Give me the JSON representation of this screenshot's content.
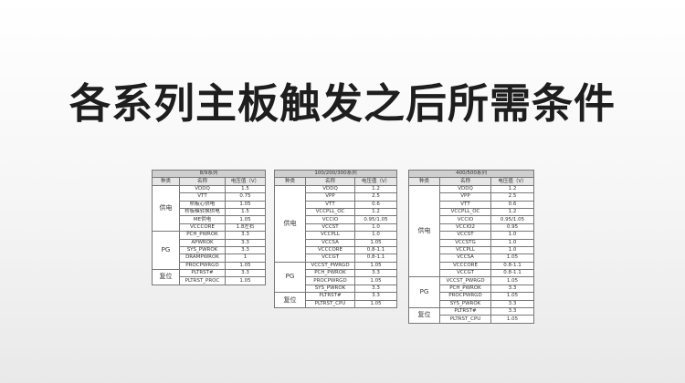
{
  "header": {
    "title": "各系列主板触发之后所需条件"
  },
  "tables": [
    {
      "title": "8/9系列",
      "headers": [
        "种类",
        "名称",
        "电压值（V）"
      ],
      "groups": [
        {
          "kind": "供电",
          "rows": [
            [
              "VDDQ",
              "1.5"
            ],
            [
              "VTT",
              "0.75"
            ],
            [
              "桥板心供电",
              "1.05"
            ],
            [
              "桥板模转换供电",
              "1.5"
            ],
            [
              "ME供电",
              "1.05"
            ],
            [
              "VCCCORE",
              "1.8左右"
            ]
          ]
        },
        {
          "kind": "PG",
          "rows": [
            [
              "PCH_PWROK",
              "3.3"
            ],
            [
              "APWROK",
              "3.3"
            ],
            [
              "SYS_PWROK",
              "3.3"
            ],
            [
              "DRAMPWROK",
              "1"
            ],
            [
              "PROCPWRGD",
              "1.05"
            ]
          ]
        },
        {
          "kind": "复位",
          "rows": [
            [
              "PLTRST#",
              "3.3"
            ],
            [
              "PLTRST_PROC",
              "1.05"
            ]
          ]
        }
      ]
    },
    {
      "title": "100/200/300系列",
      "headers": [
        "种类",
        "名称",
        "电压值（V）"
      ],
      "groups": [
        {
          "kind": "供电",
          "rows": [
            [
              "VDDQ",
              "1.2"
            ],
            [
              "VPP",
              "2.5"
            ],
            [
              "VTT",
              "0.6"
            ],
            [
              "VCCPLL_OC",
              "1.2"
            ],
            [
              "VCCIO",
              "0.95/1.05"
            ],
            [
              "VCCST",
              "1.0"
            ],
            [
              "VCCPLL",
              "1.0"
            ],
            [
              "VCCSA",
              "1.05"
            ],
            [
              "VCCCORE",
              "0.8-1.1"
            ],
            [
              "VCCGT",
              "0.8-1.1"
            ]
          ]
        },
        {
          "kind": "PG",
          "rows": [
            [
              "VCCST_PWRGD",
              "1.05"
            ],
            [
              "PCH_PWROK",
              "3.3"
            ],
            [
              "PROCPWRGD",
              "1.05"
            ],
            [
              "SYS_PWROK",
              "3.3"
            ]
          ]
        },
        {
          "kind": "复位",
          "rows": [
            [
              "PLTRST#",
              "3.3"
            ],
            [
              "PLTRST_CPU",
              "1.05"
            ]
          ]
        }
      ]
    },
    {
      "title": "400/500系列",
      "headers": [
        "种类",
        "名称",
        "电压值（V）"
      ],
      "groups": [
        {
          "kind": "供电",
          "rows": [
            [
              "VDDQ",
              "1.2"
            ],
            [
              "VPP",
              "2.5"
            ],
            [
              "VTT",
              "0.6"
            ],
            [
              "VCCPLL_OC",
              "1.2"
            ],
            [
              "VCCIO",
              "0.95/1.05"
            ],
            [
              "VCCIO2",
              "0.95"
            ],
            [
              "VCCST",
              "1.0"
            ],
            [
              "VCCSTG",
              "1.0"
            ],
            [
              "VCCPLL",
              "1.0"
            ],
            [
              "VCCSA",
              "1.05"
            ],
            [
              "VCCCORE",
              "0.8-1.1"
            ],
            [
              "VCCGT",
              "0.8-1.1"
            ]
          ]
        },
        {
          "kind": "PG",
          "rows": [
            [
              "VCCST_PWRGD",
              "1.05"
            ],
            [
              "PCH_PWROK",
              "3.3"
            ],
            [
              "PROCPWRGD",
              "1.05"
            ],
            [
              "SYS_PWROK",
              "3.3"
            ]
          ]
        },
        {
          "kind": "复位",
          "rows": [
            [
              "PLTRST#",
              "3.3"
            ],
            [
              "PLTRST_CPU",
              "1.05"
            ]
          ]
        }
      ]
    }
  ]
}
